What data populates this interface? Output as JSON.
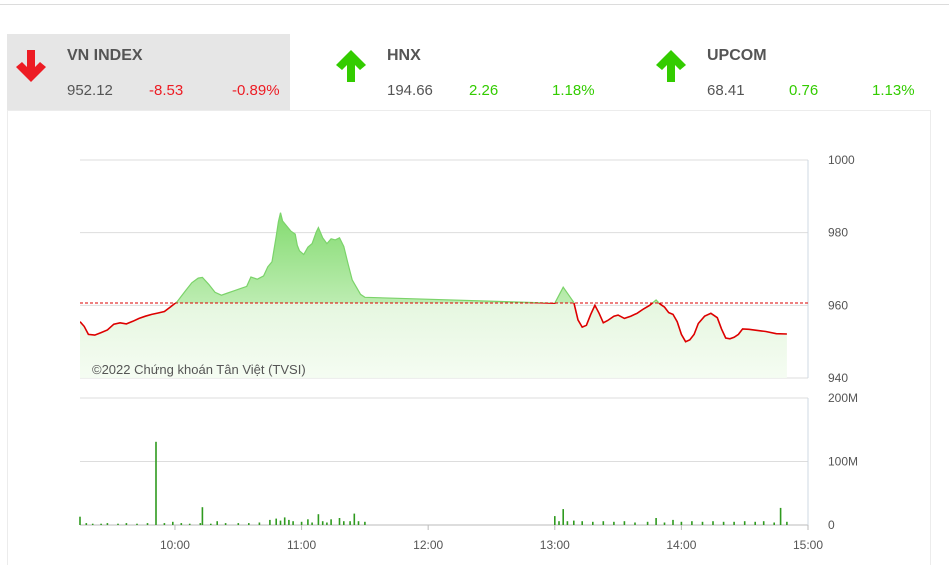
{
  "indices": [
    {
      "name": "VN INDEX",
      "value": "952.12",
      "change": "-8.53",
      "percent": "-0.89%",
      "direction": "down",
      "color": "#ed1c24",
      "active": true,
      "arrow_icon": "arrow-down-icon"
    },
    {
      "name": "HNX",
      "value": "194.66",
      "change": "2.26",
      "percent": "1.18%",
      "direction": "up",
      "color": "#33cc00",
      "active": false,
      "arrow_icon": "arrow-up-icon"
    },
    {
      "name": "UPCOM",
      "value": "68.41",
      "change": "0.76",
      "percent": "1.13%",
      "direction": "up",
      "color": "#33cc00",
      "active": false,
      "arrow_icon": "arrow-up-icon"
    }
  ],
  "chart": {
    "watermark": "©2022 Chứng khoán Tân Việt (TVSI)",
    "reference_color": "#dd0000",
    "up_fill": "#8fe07a",
    "down_line": "#dd0000"
  },
  "chart_data": [
    {
      "type": "area",
      "title": "",
      "ylim": [
        940,
        1000
      ],
      "y_ticks": [
        "1000",
        "980",
        "960",
        "940"
      ],
      "x_ticks": [
        "10:00",
        "11:00",
        "12:00",
        "13:00",
        "14:00",
        "15:00"
      ],
      "xlim": [
        "09:15",
        "15:00"
      ],
      "reference_value": 960.65,
      "series": [
        {
          "values": [
            [
              "09:15",
              955.5
            ],
            [
              "09:17",
              954.2
            ],
            [
              "09:19",
              952.0
            ],
            [
              "09:22",
              951.8
            ],
            [
              "09:25",
              952.5
            ],
            [
              "09:28",
              953.2
            ],
            [
              "09:31",
              954.8
            ],
            [
              "09:34",
              955.2
            ],
            [
              "09:37",
              954.9
            ],
            [
              "09:40",
              955.6
            ],
            [
              "09:43",
              956.4
            ],
            [
              "09:46",
              957.0
            ],
            [
              "09:49",
              957.5
            ],
            [
              "09:52",
              957.9
            ],
            [
              "09:55",
              958.3
            ],
            [
              "09:58",
              959.6
            ],
            [
              "10:01",
              961.0
            ],
            [
              "10:05",
              964.0
            ],
            [
              "10:08",
              966.2
            ],
            [
              "10:11",
              967.5
            ],
            [
              "10:13",
              967.7
            ],
            [
              "10:16",
              965.8
            ],
            [
              "10:19",
              963.6
            ],
            [
              "10:22",
              962.8
            ],
            [
              "10:25",
              963.4
            ],
            [
              "10:28",
              964.0
            ],
            [
              "10:31",
              964.6
            ],
            [
              "10:34",
              965.2
            ],
            [
              "10:36",
              967.8
            ],
            [
              "10:39",
              967.2
            ],
            [
              "10:42",
              968.1
            ],
            [
              "10:44",
              970.6
            ],
            [
              "10:46",
              972.0
            ],
            [
              "10:48",
              979.0
            ],
            [
              "10:49",
              983.0
            ],
            [
              "10:50",
              985.5
            ],
            [
              "10:51",
              983.2
            ],
            [
              "10:53",
              981.8
            ],
            [
              "10:55",
              980.4
            ],
            [
              "10:57",
              979.6
            ],
            [
              "10:58",
              976.5
            ],
            [
              "10:59",
              975.0
            ],
            [
              "11:01",
              974.0
            ],
            [
              "11:03",
              976.0
            ],
            [
              "11:05",
              977.0
            ],
            [
              "11:07",
              980.2
            ],
            [
              "11:08",
              981.4
            ],
            [
              "11:10",
              978.6
            ],
            [
              "11:12",
              977.0
            ],
            [
              "11:14",
              978.3
            ],
            [
              "11:16",
              978.0
            ],
            [
              "11:18",
              978.6
            ],
            [
              "11:20",
              976.2
            ],
            [
              "11:22",
              971.5
            ],
            [
              "11:24",
              967.0
            ],
            [
              "11:26",
              965.0
            ],
            [
              "11:28",
              963.0
            ],
            [
              "11:30",
              962.2
            ],
            [
              "13:00",
              960.6
            ],
            [
              "13:02",
              962.8
            ],
            [
              "13:04",
              965.0
            ],
            [
              "13:07",
              962.5
            ],
            [
              "13:09",
              960.8
            ],
            [
              "13:11",
              956.0
            ],
            [
              "13:13",
              954.0
            ],
            [
              "13:15",
              954.5
            ],
            [
              "13:17",
              957.5
            ],
            [
              "13:19",
              960.0
            ],
            [
              "13:21",
              957.8
            ],
            [
              "13:23",
              955.2
            ],
            [
              "13:25",
              955.8
            ],
            [
              "13:28",
              957.0
            ],
            [
              "13:30",
              957.3
            ],
            [
              "13:33",
              956.4
            ],
            [
              "13:36",
              957.0
            ],
            [
              "13:39",
              957.8
            ],
            [
              "13:42",
              959.0
            ],
            [
              "13:45",
              960.0
            ],
            [
              "13:48",
              961.5
            ],
            [
              "13:50",
              960.3
            ],
            [
              "13:52",
              959.5
            ],
            [
              "13:54",
              958.0
            ],
            [
              "13:56",
              957.5
            ],
            [
              "13:58",
              955.5
            ],
            [
              "14:00",
              952.0
            ],
            [
              "14:02",
              950.0
            ],
            [
              "14:04",
              950.5
            ],
            [
              "14:06",
              952.0
            ],
            [
              "14:08",
              955.0
            ],
            [
              "14:11",
              957.0
            ],
            [
              "14:14",
              957.8
            ],
            [
              "14:17",
              956.6
            ],
            [
              "14:19",
              953.5
            ],
            [
              "14:21",
              951.0
            ],
            [
              "14:23",
              950.8
            ],
            [
              "14:25",
              951.2
            ],
            [
              "14:27",
              952.0
            ],
            [
              "14:29",
              953.5
            ],
            [
              "14:32",
              953.4
            ],
            [
              "14:36",
              953.1
            ],
            [
              "14:40",
              952.8
            ],
            [
              "14:45",
              952.2
            ],
            [
              "14:50",
              952.12
            ]
          ]
        }
      ]
    },
    {
      "type": "bar",
      "title": "",
      "ylim": [
        0,
        200
      ],
      "y_ticks": [
        "200M",
        "100M",
        "0"
      ],
      "unit": "M",
      "x_ticks": [
        "10:00",
        "11:00",
        "12:00",
        "13:00",
        "14:00",
        "15:00"
      ],
      "bars": [
        [
          "09:15",
          13
        ],
        [
          "09:18",
          3
        ],
        [
          "09:21",
          2
        ],
        [
          "09:25",
          2
        ],
        [
          "09:28",
          3
        ],
        [
          "09:33",
          2
        ],
        [
          "09:37",
          3
        ],
        [
          "09:42",
          2
        ],
        [
          "09:47",
          3
        ],
        [
          "09:51",
          131
        ],
        [
          "09:55",
          3
        ],
        [
          "09:59",
          5
        ],
        [
          "10:03",
          3
        ],
        [
          "10:07",
          2
        ],
        [
          "10:12",
          3
        ],
        [
          "10:13",
          28
        ],
        [
          "10:17",
          2
        ],
        [
          "10:20",
          6
        ],
        [
          "10:24",
          3
        ],
        [
          "10:30",
          3
        ],
        [
          "10:35",
          3
        ],
        [
          "10:40",
          4
        ],
        [
          "10:45",
          8
        ],
        [
          "10:48",
          10
        ],
        [
          "10:50",
          7
        ],
        [
          "10:52",
          12
        ],
        [
          "10:54",
          8
        ],
        [
          "10:56",
          6
        ],
        [
          "11:00",
          5
        ],
        [
          "11:03",
          9
        ],
        [
          "11:05",
          4
        ],
        [
          "11:08",
          17
        ],
        [
          "11:10",
          6
        ],
        [
          "11:12",
          4
        ],
        [
          "11:14",
          9
        ],
        [
          "11:18",
          11
        ],
        [
          "11:20",
          6
        ],
        [
          "11:23",
          6
        ],
        [
          "11:25",
          18
        ],
        [
          "11:27",
          6
        ],
        [
          "11:30",
          5
        ],
        [
          "13:00",
          14
        ],
        [
          "13:02",
          6
        ],
        [
          "13:04",
          25
        ],
        [
          "13:06",
          6
        ],
        [
          "13:09",
          7
        ],
        [
          "13:13",
          6
        ],
        [
          "13:18",
          5
        ],
        [
          "13:23",
          6
        ],
        [
          "13:28",
          5
        ],
        [
          "13:33",
          6
        ],
        [
          "13:38",
          4
        ],
        [
          "13:44",
          5
        ],
        [
          "13:48",
          11
        ],
        [
          "13:52",
          4
        ],
        [
          "13:56",
          8
        ],
        [
          "14:00",
          5
        ],
        [
          "14:05",
          6
        ],
        [
          "14:10",
          5
        ],
        [
          "14:15",
          6
        ],
        [
          "14:20",
          5
        ],
        [
          "14:25",
          5
        ],
        [
          "14:30",
          6
        ],
        [
          "14:35",
          5
        ],
        [
          "14:39",
          6
        ],
        [
          "14:44",
          4
        ],
        [
          "14:47",
          27
        ],
        [
          "14:50",
          5
        ]
      ]
    }
  ]
}
